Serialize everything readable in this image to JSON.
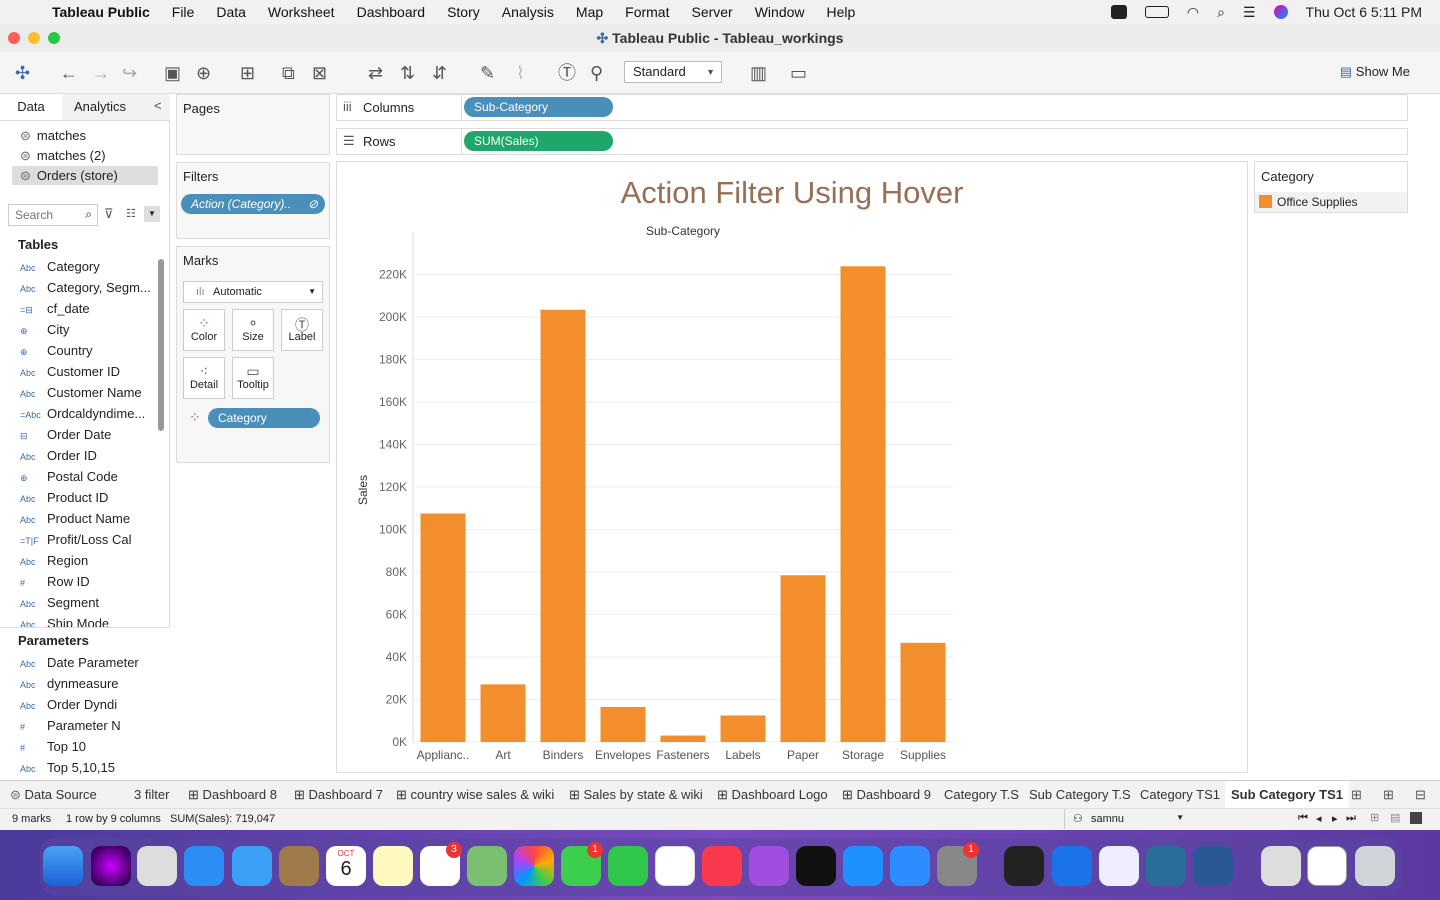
{
  "menubar": {
    "app": "Tableau Public",
    "items": [
      "File",
      "Data",
      "Worksheet",
      "Dashboard",
      "Story",
      "Analysis",
      "Map",
      "Format",
      "Server",
      "Window",
      "Help"
    ],
    "clock": "Thu Oct 6  5:11 PM"
  },
  "window": {
    "title": "Tableau Public - Tableau_workings"
  },
  "toolbar": {
    "fit_mode": "Standard",
    "show_me": "Show Me"
  },
  "left": {
    "tabs": {
      "data": "Data",
      "analytics": "Analytics"
    },
    "datasources": [
      "matches",
      "matches (2)",
      "Orders (store)"
    ],
    "search_placeholder": "Search",
    "tables_header": "Tables",
    "fields": [
      {
        "type": "Abc",
        "name": "Category"
      },
      {
        "type": "Abc",
        "name": "Category, Segm..."
      },
      {
        "type": "=⊟",
        "name": "cf_date"
      },
      {
        "type": "⊕",
        "name": "City"
      },
      {
        "type": "⊕",
        "name": "Country"
      },
      {
        "type": "Abc",
        "name": "Customer ID"
      },
      {
        "type": "Abc",
        "name": "Customer Name"
      },
      {
        "type": "=Abc",
        "name": "Ordcaldyndime..."
      },
      {
        "type": "⊟",
        "name": "Order Date"
      },
      {
        "type": "Abc",
        "name": "Order ID"
      },
      {
        "type": "⊕",
        "name": "Postal Code"
      },
      {
        "type": "Abc",
        "name": "Product ID"
      },
      {
        "type": "Abc",
        "name": "Product Name"
      },
      {
        "type": "=T|F",
        "name": "Profit/Loss Cal"
      },
      {
        "type": "Abc",
        "name": "Region"
      },
      {
        "type": "#",
        "name": "Row ID"
      },
      {
        "type": "Abc",
        "name": "Segment"
      },
      {
        "type": "Abc",
        "name": "Ship Mode"
      }
    ],
    "parameters_header": "Parameters",
    "parameters": [
      {
        "type": "Abc",
        "name": "Date Parameter"
      },
      {
        "type": "Abc",
        "name": "dynmeasure"
      },
      {
        "type": "Abc",
        "name": "Order Dyndi"
      },
      {
        "type": "#",
        "name": "Parameter N"
      },
      {
        "type": "#",
        "name": "Top 10"
      },
      {
        "type": "Abc",
        "name": "Top 5,10,15"
      }
    ]
  },
  "cards": {
    "pages": "Pages",
    "filters": "Filters",
    "filter_pill": "Action (Category)..",
    "marks": "Marks",
    "mark_type": "Automatic",
    "mark_buttons": [
      "Color",
      "Size",
      "Label",
      "Detail",
      "Tooltip"
    ],
    "category_pill": "Category"
  },
  "shelves": {
    "columns_label": "Columns",
    "columns_pill": "Sub-Category",
    "rows_label": "Rows",
    "rows_pill": "SUM(Sales)"
  },
  "chart_data": {
    "type": "bar",
    "title": "Action Filter Using Hover",
    "xlabel": "Sub-Category",
    "ylabel": "Sales",
    "categories": [
      "Applianc..",
      "Art",
      "Binders",
      "Envelopes",
      "Fasteners",
      "Labels",
      "Paper",
      "Storage",
      "Supplies"
    ],
    "values": [
      107532,
      27119,
      203413,
      16476,
      3024,
      12486,
      78479,
      223844,
      46674
    ],
    "ylim": [
      0,
      240000
    ],
    "ticks": [
      0,
      20000,
      40000,
      60000,
      80000,
      100000,
      120000,
      140000,
      160000,
      180000,
      200000,
      220000
    ],
    "tick_labels": [
      "0K",
      "20K",
      "40K",
      "60K",
      "80K",
      "100K",
      "120K",
      "140K",
      "160K",
      "180K",
      "200K",
      "220K"
    ],
    "color": "#f28e2b",
    "grid": true
  },
  "legend": {
    "title": "Category",
    "items": [
      {
        "label": "Office Supplies",
        "color": "#f28e2b"
      }
    ]
  },
  "bottom_tabs": [
    "Data Source",
    "3 filter",
    "Dashboard 8",
    "Dashboard 7",
    "country wise sales & wiki",
    "Sales by state & wiki",
    "Dashboard Logo",
    "Dashboard 9",
    "Category T.S",
    "Sub Category T.S",
    "Category TS1",
    "Sub Category TS1"
  ],
  "status": {
    "marks": "9 marks",
    "dims": "1 row by 9 columns",
    "sum": "SUM(Sales): 719,047",
    "user": "samnu"
  },
  "dock": {
    "calendar_month": "OCT",
    "calendar_day": "6",
    "badges": [
      "3",
      "1",
      "1"
    ]
  },
  "colors": {
    "pill_blue": "#4a8fba",
    "pill_green": "#1fa66b",
    "title_color": "#9a6e55"
  }
}
